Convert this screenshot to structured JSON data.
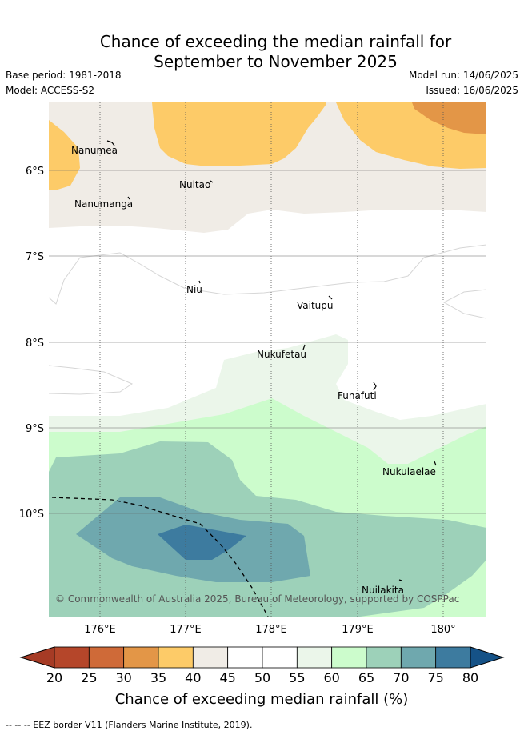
{
  "title_line1": "Chance of exceeding the median rainfall for",
  "title_line2": "September to November 2025",
  "base_period": "Base period: 1981-2018",
  "model": "Model: ACCESS-S2",
  "model_run": "Model run: 14/06/2025",
  "issued": "Issued: 16/06/2025",
  "lat_labels": [
    "6°S",
    "7°S",
    "8°S",
    "9°S",
    "10°S"
  ],
  "lon_labels": [
    "176°E",
    "177°E",
    "178°E",
    "179°E",
    "180°"
  ],
  "places": [
    "Nanumea",
    "Nuitao",
    "Nanumanga",
    "Niu",
    "Vaitupu",
    "Nukufetau",
    "Funafuti",
    "Nukulaelae",
    "Nuilakita"
  ],
  "copyright": "© Commonwealth of Australia 2025, Bureau of Meteorology, supported by COSPPac",
  "colorbar": {
    "ticks": [
      "20",
      "25",
      "30",
      "35",
      "40",
      "45",
      "50",
      "55",
      "60",
      "65",
      "70",
      "75",
      "80"
    ],
    "colors": [
      "#b5462a",
      "#cf6a38",
      "#e39647",
      "#fdcb68",
      "#f0ece6",
      "#ffffff",
      "#ffffff",
      "#ebf6ea",
      "#ccfccc",
      "#9dd1b9",
      "#6fa8ae",
      "#3d7b9f"
    ],
    "under_color": "#a63b25",
    "over_color": "#155287",
    "label": "Chance of exceeding median rainfall (%)"
  },
  "footnote": "-- -- -- EEZ border V11 (Flanders Marine Institute, 2019)."
}
